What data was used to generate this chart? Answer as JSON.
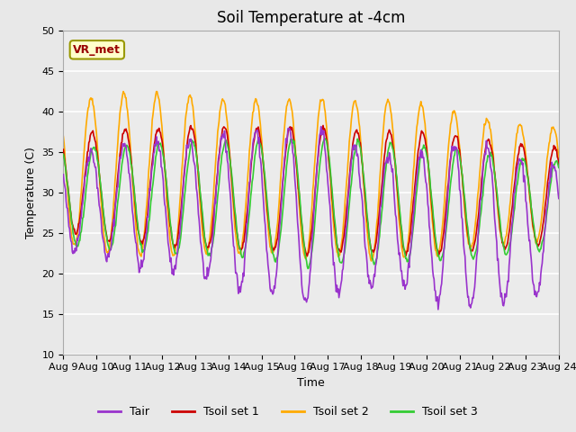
{
  "title": "Soil Temperature at -4cm",
  "xlabel": "Time",
  "ylabel": "Temperature (C)",
  "ylim": [
    10,
    50
  ],
  "x_tick_labels": [
    "Aug 9",
    "Aug 10",
    "Aug 11",
    "Aug 12",
    "Aug 13",
    "Aug 14",
    "Aug 15",
    "Aug 16",
    "Aug 17",
    "Aug 18",
    "Aug 19",
    "Aug 20",
    "Aug 21",
    "Aug 22",
    "Aug 23",
    "Aug 24"
  ],
  "legend_labels": [
    "Tair",
    "Tsoil set 1",
    "Tsoil set 2",
    "Tsoil set 3"
  ],
  "legend_colors": [
    "#9933cc",
    "#cc0000",
    "#ffaa00",
    "#33cc33"
  ],
  "annotation_text": "VR_met",
  "bg_color": "#e8e8e8",
  "plot_bg_color": "#ebebeb",
  "title_fontsize": 12,
  "label_fontsize": 9,
  "tick_fontsize": 8
}
